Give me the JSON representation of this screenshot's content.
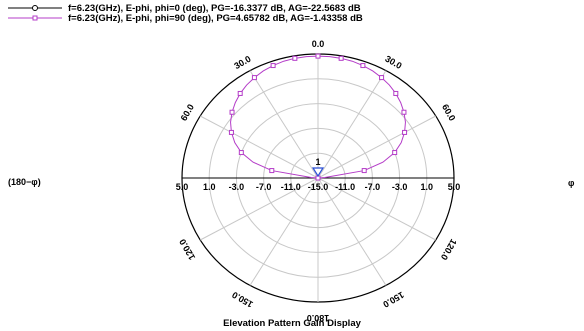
{
  "chart_data": {
    "type": "polar",
    "title": "Elevation Pattern Gain Display",
    "legend_placement": "top-left",
    "series": [
      {
        "name": "f=6.23(GHz), E-phi, phi=0 (deg), PG=-16.3377 dB, AG=-22.5683 dB",
        "color": "#000000",
        "marker": "circle",
        "values": []
      },
      {
        "name": "f=6.23(GHz), E-phi, phi=90 (deg), PG=4.65782 dB, AG=-1.43358 dB",
        "color": "#b43cc8",
        "marker": "square",
        "theta_deg": [
          -90,
          -85,
          -80,
          -75,
          -70,
          -65,
          -60,
          -55,
          -50,
          -45,
          -40,
          -35,
          -30,
          -25,
          -20,
          -15,
          -10,
          -5,
          0,
          5,
          10,
          15,
          20,
          25,
          30,
          35,
          40,
          45,
          50,
          55,
          60,
          65,
          70,
          75,
          80,
          85,
          90
        ],
        "gain_db": [
          -15,
          -14,
          -8.1,
          -5.1,
          -3,
          -1.5,
          -0.3,
          0.7,
          1.5,
          2.2,
          2.8,
          3.3,
          3.7,
          4.05,
          4.3,
          4.5,
          4.6,
          4.65,
          4.66,
          4.65,
          4.6,
          4.5,
          4.3,
          4.05,
          3.7,
          3.3,
          2.8,
          2.2,
          1.5,
          0.7,
          -0.3,
          -1.5,
          -3,
          -5.1,
          -8.1,
          -14,
          -15
        ]
      }
    ],
    "radial_ticks": [
      "5.0",
      "1.0",
      "-3.0",
      "-7.0",
      "-11.0",
      "-15.0"
    ],
    "radial_range_db": [
      -15,
      5
    ],
    "angle_ticks": [
      {
        "angle": 0,
        "label": "0.0"
      },
      {
        "angle": 30,
        "label": "30.0"
      },
      {
        "angle": -30,
        "label": "30.0"
      },
      {
        "angle": 60,
        "label": "60.0"
      },
      {
        "angle": -60,
        "label": "60.0"
      },
      {
        "angle": 120,
        "label": "120.0"
      },
      {
        "angle": -120,
        "label": "120.0"
      },
      {
        "angle": 150,
        "label": "150.0"
      },
      {
        "angle": -150,
        "label": "150.0"
      },
      {
        "angle": 180,
        "label": "180.0"
      }
    ],
    "left_axis_label": "(180−φ)",
    "right_axis_label": "φ",
    "marker_label": "1",
    "grid": true
  }
}
